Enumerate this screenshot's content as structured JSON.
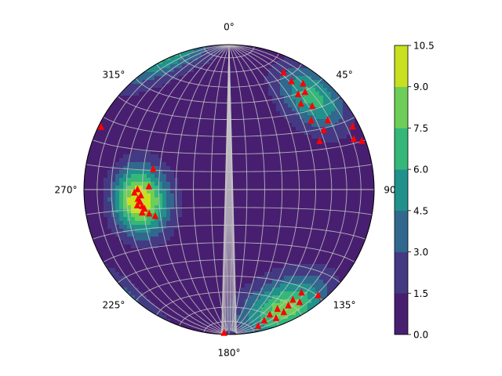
{
  "chart_data": {
    "type": "contour",
    "title": "",
    "azimuth_labels": [
      {
        "angle": 0,
        "text": "0°"
      },
      {
        "angle": 45,
        "text": "45°"
      },
      {
        "angle": 90,
        "text": "90°"
      },
      {
        "angle": 135,
        "text": "135°"
      },
      {
        "angle": 180,
        "text": "180°"
      },
      {
        "angle": 225,
        "text": "225°"
      },
      {
        "angle": 270,
        "text": "270°"
      },
      {
        "angle": 315,
        "text": "315°"
      }
    ],
    "colorbar": {
      "levels": [
        0.0,
        1.5,
        3.0,
        4.5,
        6.0,
        7.5,
        9.0,
        10.5
      ],
      "tick_labels": [
        "0.0",
        "1.5",
        "3.0",
        "4.5",
        "6.0",
        "7.5",
        "9.0",
        "10.5"
      ],
      "colors": [
        "#481f70",
        "#443a83",
        "#31688e",
        "#21918c",
        "#35b779",
        "#6ece58",
        "#c8e020"
      ]
    },
    "grid": true,
    "density_peaks": [
      {
        "azimuth": 263,
        "plunge": 38,
        "peak": 10.4,
        "spread": 0.21
      },
      {
        "azimuth": 155,
        "plunge": 10,
        "peak": 8.2,
        "spread": 0.24
      },
      {
        "azimuth": 42,
        "plunge": 15,
        "peak": 6.4,
        "spread": 0.22
      }
    ],
    "poles_color": "#ff0000",
    "poles": [
      {
        "azimuth": 259,
        "plunge": 39
      },
      {
        "azimuth": 262,
        "plunge": 38
      },
      {
        "azimuth": 264,
        "plunge": 37
      },
      {
        "azimuth": 260,
        "plunge": 36
      },
      {
        "azimuth": 266,
        "plunge": 39
      },
      {
        "azimuth": 257,
        "plunge": 40
      },
      {
        "azimuth": 268,
        "plunge": 35
      },
      {
        "azimuth": 255,
        "plunge": 38
      },
      {
        "azimuth": 270,
        "plunge": 37
      },
      {
        "azimuth": 253,
        "plunge": 42
      },
      {
        "azimuth": 272,
        "plunge": 44
      },
      {
        "azimuth": 250,
        "plunge": 45
      },
      {
        "azimuth": 285,
        "plunge": 45
      },
      {
        "azimuth": 296,
        "plunge": 2
      },
      {
        "azimuth": 148,
        "plunge": 9
      },
      {
        "azimuth": 150,
        "plunge": 13
      },
      {
        "azimuth": 153,
        "plunge": 11
      },
      {
        "azimuth": 156,
        "plunge": 8
      },
      {
        "azimuth": 158,
        "plunge": 12
      },
      {
        "azimuth": 160,
        "plunge": 6
      },
      {
        "azimuth": 145,
        "plunge": 14
      },
      {
        "azimuth": 162,
        "plunge": 10
      },
      {
        "azimuth": 165,
        "plunge": 7
      },
      {
        "azimuth": 140,
        "plunge": 5
      },
      {
        "azimuth": 168,
        "plunge": 4
      },
      {
        "azimuth": 182,
        "plunge": 1
      },
      {
        "azimuth": 25,
        "plunge": 12
      },
      {
        "azimuth": 30,
        "plunge": 15
      },
      {
        "azimuth": 35,
        "plunge": 12
      },
      {
        "azimuth": 36,
        "plunge": 20
      },
      {
        "azimuth": 38,
        "plunge": 16
      },
      {
        "azimuth": 40,
        "plunge": 24
      },
      {
        "azimuth": 45,
        "plunge": 20
      },
      {
        "azimuth": 50,
        "plunge": 27
      },
      {
        "azimuth": 55,
        "plunge": 18
      },
      {
        "azimuth": 58,
        "plunge": 24
      },
      {
        "azimuth": 62,
        "plunge": 30
      },
      {
        "azimuth": 63,
        "plunge": 5
      },
      {
        "azimuth": 68,
        "plunge": 8
      },
      {
        "azimuth": 70,
        "plunge": 3
      }
    ]
  }
}
